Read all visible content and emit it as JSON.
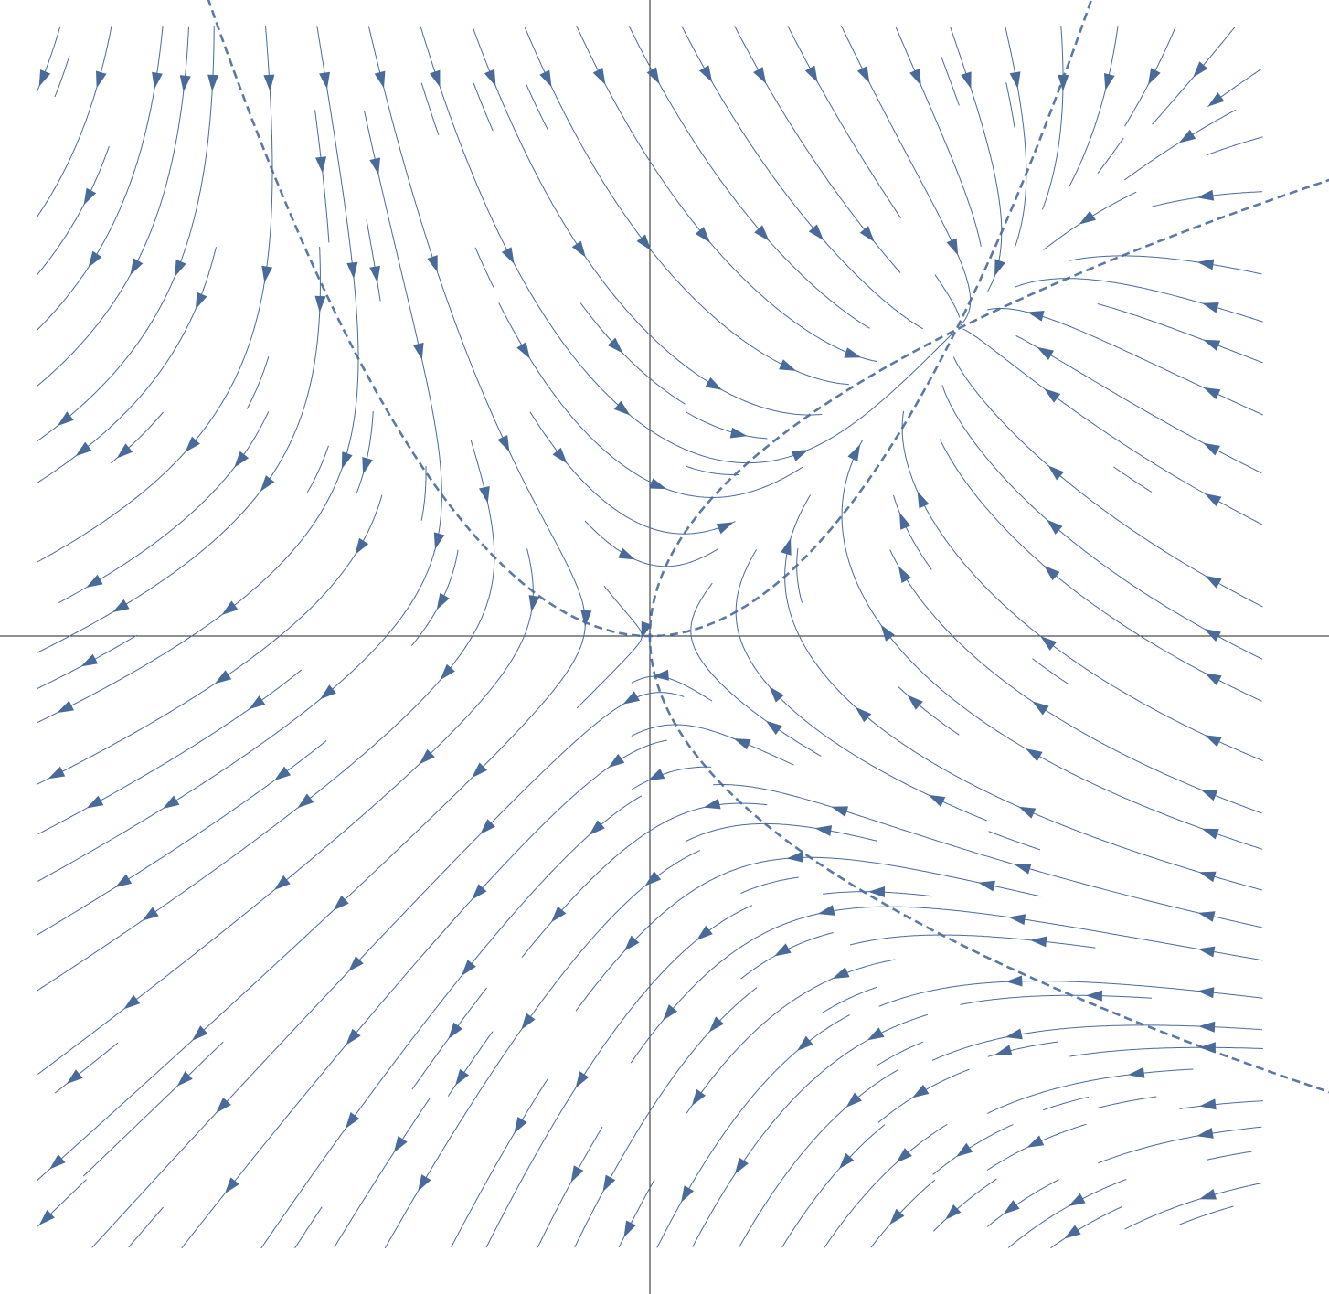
{
  "chart_data": {
    "type": "streamplot",
    "color": "#4a6a9a"
  }
}
